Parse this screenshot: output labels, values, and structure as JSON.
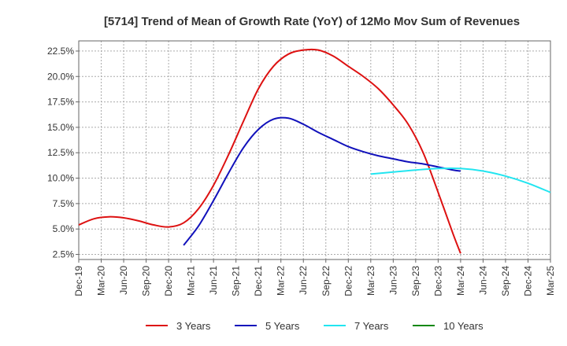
{
  "chart_data": {
    "type": "line",
    "title": "[5714]  Trend of Mean of Growth Rate (YoY) of 12Mo Mov Sum of Revenues",
    "xlabel": "",
    "ylabel": "",
    "ylim": [
      2.0,
      23.5
    ],
    "y_ticks": [
      2.5,
      5.0,
      7.5,
      10.0,
      12.5,
      15.0,
      17.5,
      20.0,
      22.5
    ],
    "y_tick_labels": [
      "2.5%",
      "5.0%",
      "7.5%",
      "10.0%",
      "12.5%",
      "15.0%",
      "17.5%",
      "20.0%",
      "22.5%"
    ],
    "x_range_months": [
      0,
      63
    ],
    "x_ticks": [
      0,
      3,
      6,
      9,
      12,
      15,
      18,
      21,
      24,
      27,
      30,
      33,
      36,
      39,
      42,
      45,
      48,
      51,
      54,
      57,
      60,
      63
    ],
    "x_tick_labels": [
      "Dec-19",
      "Mar-20",
      "Jun-20",
      "Sep-20",
      "Dec-20",
      "Mar-21",
      "Jun-21",
      "Sep-21",
      "Dec-21",
      "Mar-22",
      "Jun-22",
      "Sep-22",
      "Dec-22",
      "Mar-23",
      "Jun-23",
      "Sep-23",
      "Dec-23",
      "Mar-24",
      "Jun-24",
      "Sep-24",
      "Dec-24",
      "Mar-25"
    ],
    "grid": true,
    "legend_position": "bottom",
    "series": [
      {
        "name": "3 Years",
        "color": "#dd1111",
        "points": [
          [
            0,
            5.4
          ],
          [
            2,
            6.0
          ],
          [
            4,
            6.2
          ],
          [
            6,
            6.1
          ],
          [
            8,
            5.8
          ],
          [
            10,
            5.4
          ],
          [
            12,
            5.2
          ],
          [
            14,
            5.6
          ],
          [
            16,
            7.0
          ],
          [
            18,
            9.3
          ],
          [
            20,
            12.3
          ],
          [
            22,
            15.6
          ],
          [
            24,
            18.8
          ],
          [
            26,
            21.0
          ],
          [
            28,
            22.2
          ],
          [
            30,
            22.6
          ],
          [
            32,
            22.6
          ],
          [
            34,
            22.0
          ],
          [
            36,
            21.0
          ],
          [
            38,
            20.0
          ],
          [
            40,
            18.8
          ],
          [
            42,
            17.2
          ],
          [
            44,
            15.3
          ],
          [
            46,
            12.5
          ],
          [
            48,
            8.6
          ],
          [
            50,
            4.5
          ],
          [
            51,
            2.6
          ]
        ]
      },
      {
        "name": "5 Years",
        "color": "#1111bb",
        "points": [
          [
            14,
            3.4
          ],
          [
            16,
            5.3
          ],
          [
            18,
            7.8
          ],
          [
            20,
            10.5
          ],
          [
            22,
            13.0
          ],
          [
            24,
            14.8
          ],
          [
            26,
            15.8
          ],
          [
            28,
            15.9
          ],
          [
            30,
            15.3
          ],
          [
            32,
            14.5
          ],
          [
            34,
            13.8
          ],
          [
            36,
            13.1
          ],
          [
            38,
            12.6
          ],
          [
            40,
            12.2
          ],
          [
            42,
            11.9
          ],
          [
            44,
            11.6
          ],
          [
            46,
            11.4
          ],
          [
            48,
            11.1
          ],
          [
            50,
            10.8
          ],
          [
            51,
            10.7
          ]
        ]
      },
      {
        "name": "7 Years",
        "color": "#22e5f0",
        "points": [
          [
            39,
            10.4
          ],
          [
            42,
            10.6
          ],
          [
            45,
            10.8
          ],
          [
            48,
            10.95
          ],
          [
            51,
            10.95
          ],
          [
            54,
            10.7
          ],
          [
            57,
            10.2
          ],
          [
            60,
            9.5
          ],
          [
            63,
            8.6
          ]
        ]
      },
      {
        "name": "10 Years",
        "color": "#118811",
        "points": []
      }
    ]
  }
}
